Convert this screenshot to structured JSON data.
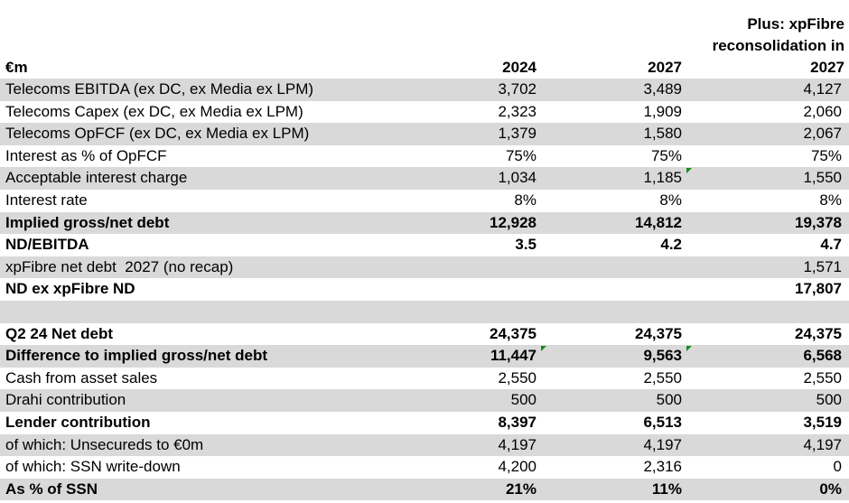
{
  "header": {
    "label": "€m",
    "col1": "2024",
    "col2": "2027",
    "col3_line1": "Plus: xpFibre",
    "col3_line2": "reconsolidation in",
    "col3_line3": "2027"
  },
  "rows": [
    {
      "label": "Telecoms EBITDA (ex DC, ex Media ex LPM)",
      "v1": "3,702",
      "v2": "3,489",
      "v3": "4,127"
    },
    {
      "label": "Telecoms Capex (ex DC, ex Media ex LPM)",
      "v1": "2,323",
      "v2": "1,909",
      "v3": "2,060"
    },
    {
      "label": "Telecoms OpFCF (ex DC, ex Media ex LPM)",
      "v1": "1,379",
      "v2": "1,580",
      "v3": "2,067"
    },
    {
      "label": "Interest as % of OpFCF",
      "v1": "75%",
      "v2": "75%",
      "v3": "75%"
    },
    {
      "label": "Acceptable interest charge",
      "v1": "1,034",
      "v2": "1,185",
      "v3": "1,550"
    },
    {
      "label": "Interest rate",
      "v1": "8%",
      "v2": "8%",
      "v3": "8%"
    },
    {
      "label": "Implied gross/net debt",
      "v1": "12,928",
      "v2": "14,812",
      "v3": "19,378"
    },
    {
      "label": "ND/EBITDA",
      "v1": "3.5",
      "v2": "4.2",
      "v3": "4.7"
    },
    {
      "label": "xpFibre net debt  2027 (no recap)",
      "v1": "",
      "v2": "",
      "v3": "1,571"
    },
    {
      "label": "ND ex xpFibre ND",
      "v1": "",
      "v2": "",
      "v3": "17,807"
    },
    {
      "label": "",
      "v1": "",
      "v2": "",
      "v3": ""
    },
    {
      "label": "Q2 24 Net debt",
      "v1": "24,375",
      "v2": "24,375",
      "v3": "24,375"
    },
    {
      "label": "Difference to implied gross/net debt",
      "v1": "11,447",
      "v2": "9,563",
      "v3": "6,568"
    },
    {
      "label": "Cash from asset sales",
      "v1": "2,550",
      "v2": "2,550",
      "v3": "2,550"
    },
    {
      "label": "Drahi contribution",
      "v1": "500",
      "v2": "500",
      "v3": "500"
    },
    {
      "label": "Lender contribution",
      "v1": "8,397",
      "v2": "6,513",
      "v3": "3,519"
    },
    {
      "label": "of which: Unsecureds to €0m",
      "v1": "4,197",
      "v2": "4,197",
      "v3": "4,197"
    },
    {
      "label": "of which: SSN write-down",
      "v1": "4,200",
      "v2": "2,316",
      "v3": "0"
    },
    {
      "label": "As % of SSN",
      "v1": "21%",
      "v2": "11%",
      "v3": "0%"
    }
  ]
}
